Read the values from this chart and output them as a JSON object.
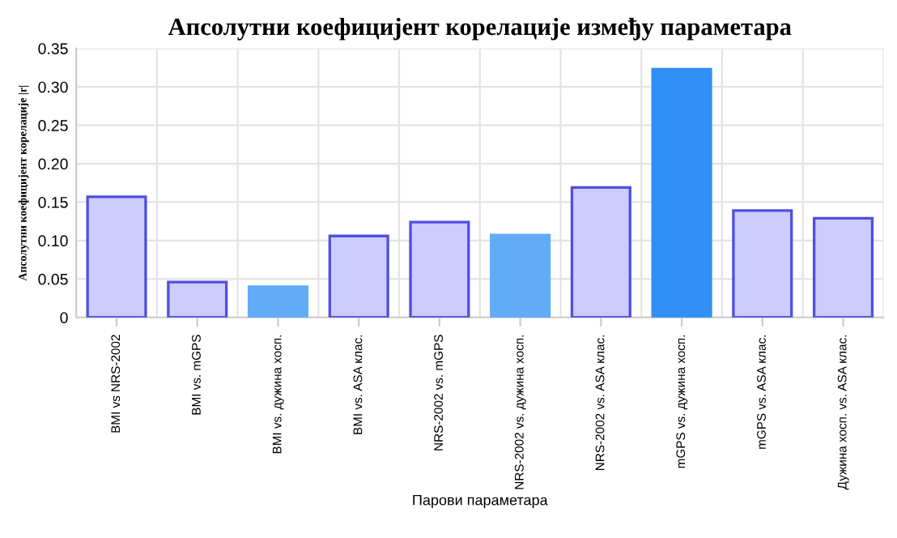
{
  "chart_data": {
    "type": "bar",
    "title": "Апсолутни коефицијент корелације између параметара",
    "xlabel": "Парови параметара",
    "ylabel": "Апсолутни коефицијент корелације |r|",
    "categories": [
      "BMI vs NRS-2002",
      "BMI vs. mGPS",
      "BMI vs. дужина хосп.",
      "BMI vs. ASA клас.",
      "NRS-2002 vs. mGPS",
      "NRS-2002 vs. дужина хосп.",
      "NRS-2002 vs. ASA клас.",
      "mGPS vs. дужина хосп.",
      "mGPS vs. ASA клас.",
      "Дужина хосп. vs. ASA клас."
    ],
    "values": [
      0.157,
      0.046,
      0.04,
      0.106,
      0.124,
      0.107,
      0.169,
      0.323,
      0.139,
      0.129
    ],
    "colors": [
      "#ccccff",
      "#ccccff",
      "#60acf7",
      "#ccccff",
      "#ccccff",
      "#60acf7",
      "#ccccff",
      "#2f8ff5",
      "#ccccff",
      "#ccccff"
    ],
    "ylim": [
      0,
      0.35
    ],
    "yticks": [
      {
        "value": 0,
        "label": "0"
      },
      {
        "value": 0.05,
        "label": "0.05"
      },
      {
        "value": 0.1,
        "label": "0.10"
      },
      {
        "value": 0.15,
        "label": "0.15"
      },
      {
        "value": 0.2,
        "label": "0.20"
      },
      {
        "value": 0.25,
        "label": "0.25"
      },
      {
        "value": 0.3,
        "label": "0.30"
      },
      {
        "value": 0.35,
        "label": "0.35"
      }
    ],
    "grid": true
  }
}
